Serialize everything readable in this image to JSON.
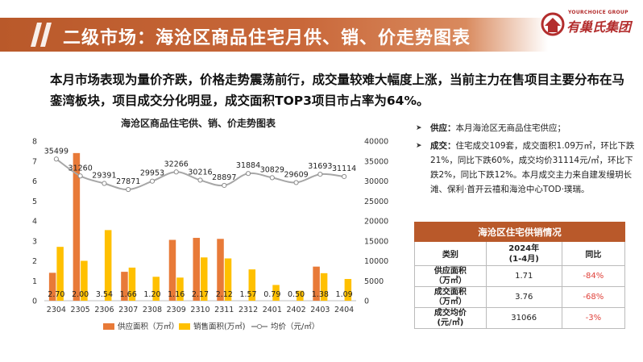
{
  "header": {
    "title": "二级市场：海沧区商品住宅月供、销、价走势图表"
  },
  "logo": {
    "sub_text": "YOURCHOICE GROUP",
    "main_text": "有巢氏集团"
  },
  "summary": "本月市场表现为量价齐跌，价格走势震荡前行，成交量较难大幅度上涨，当前主力在售项目主要分布在马銮湾板块，项目成交分化明显，成交面积TOP3项目市占率为64%。",
  "chart_title": "海沧区商品住宅供、销、价走势图表",
  "chart_data": {
    "type": "bar",
    "title": "海沧区商品住宅供、销、价走势图表",
    "categories": [
      "2304",
      "2305",
      "2306",
      "2307",
      "2308",
      "2309",
      "2310",
      "2311",
      "2312",
      "2401",
      "2402",
      "2403",
      "2404"
    ],
    "y_left_range": [
      0,
      8
    ],
    "y_left_ticks": [
      "0",
      "1",
      "2",
      "3",
      "4",
      "5",
      "6",
      "7",
      "8"
    ],
    "y_right_range": [
      0,
      40000
    ],
    "y_right_ticks": [
      "0",
      "5000",
      "10000",
      "15000",
      "20000",
      "25000",
      "30000",
      "35000",
      "40000"
    ],
    "series": [
      {
        "name": "供应面积（万㎡）",
        "axis": "left",
        "kind": "bar",
        "color": "#e87a38",
        "values": [
          1.4,
          7.4,
          0,
          1.45,
          0,
          3.05,
          3.15,
          3.1,
          0,
          0,
          0,
          1.71,
          0
        ]
      },
      {
        "name": "销售面积(万㎡)",
        "axis": "left",
        "kind": "bar",
        "color": "#ffc000",
        "values": [
          2.7,
          2.0,
          3.54,
          1.66,
          1.2,
          1.16,
          2.17,
          2.12,
          1.57,
          0.79,
          0.5,
          1.38,
          1.09
        ],
        "labels": [
          "2.70",
          "2.00",
          "3.54",
          "1.66",
          "1.20",
          "1.16",
          "2.17",
          "2.12",
          "1.57",
          "0.79",
          "0.50",
          "1.38",
          "1.09"
        ]
      },
      {
        "name": "均价（元/㎡）",
        "axis": "right",
        "kind": "line",
        "color": "#a6a6a6",
        "values": [
          35499,
          31260,
          29391,
          27871,
          29953,
          32266,
          30216,
          28897,
          31884,
          30829,
          29609,
          31693,
          31114
        ],
        "labels": [
          "35499",
          "31260",
          "29391",
          "27871",
          "29953",
          "32266",
          "30216",
          "28897",
          "31884",
          "30829",
          "29609",
          "31693",
          "31114"
        ]
      }
    ],
    "grid": false,
    "legend_position": "bottom"
  },
  "bullets": [
    {
      "key": "供应：",
      "text": "本月海沧区无商品住宅供应；"
    },
    {
      "key": "成交：",
      "text": "住宅成交109套，成交面积1.09万㎡，环比下跌21%，同比下跌60%，成交均价31114元/㎡，环比下跌2%，同比下跌12%。本月成交主力来自建发缦玥长滩、保利·首开云禧和海沧中心TOD·璞瑞。"
    }
  ],
  "table": {
    "caption": "海沧区住宅供销情况",
    "headers": [
      "类别",
      "2024年\n(1-4月)",
      "同比"
    ],
    "rows": [
      {
        "label": "供应面积\n（万㎡）",
        "value": "1.71",
        "yoy": "-84%"
      },
      {
        "label": "成交面积\n（万㎡）",
        "value": "3.76",
        "yoy": "-68%"
      },
      {
        "label": "成交均价\n(元/㎡)",
        "value": "31066",
        "yoy": "-3%"
      }
    ]
  },
  "colors": {
    "brand": "#b9592a",
    "supply": "#e87a38",
    "sales": "#ffc000",
    "price": "#a6a6a6",
    "negative": "#e0413a"
  }
}
